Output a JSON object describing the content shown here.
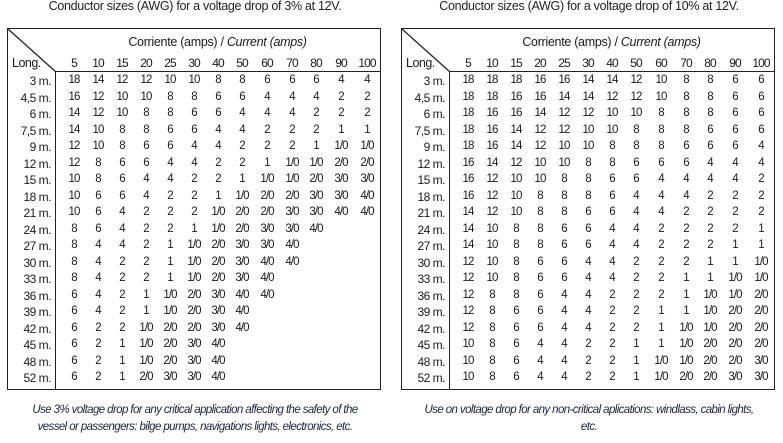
{
  "tables": [
    {
      "title": "Conductor sizes (AWG) for a voltage drop of 3% at 12V.",
      "header_es": "Corriente (amps) /",
      "header_en": "Current (amps)",
      "row_header": "Long.",
      "columns": [
        "5",
        "10",
        "15",
        "20",
        "25",
        "30",
        "40",
        "50",
        "60",
        "70",
        "80",
        "90",
        "100"
      ],
      "rows": [
        {
          "length": "3 m.",
          "values": [
            "18",
            "14",
            "12",
            "12",
            "10",
            "10",
            "8",
            "8",
            "6",
            "6",
            "6",
            "4",
            "4"
          ]
        },
        {
          "length": "4,5 m.",
          "values": [
            "16",
            "12",
            "10",
            "10",
            "8",
            "8",
            "6",
            "6",
            "4",
            "4",
            "4",
            "2",
            "2"
          ]
        },
        {
          "length": "6 m.",
          "values": [
            "14",
            "12",
            "10",
            "8",
            "8",
            "6",
            "6",
            "4",
            "4",
            "4",
            "2",
            "2",
            "2"
          ]
        },
        {
          "length": "7,5 m.",
          "values": [
            "14",
            "10",
            "8",
            "8",
            "6",
            "6",
            "4",
            "4",
            "2",
            "2",
            "2",
            "1",
            "1"
          ]
        },
        {
          "length": "9 m.",
          "values": [
            "12",
            "10",
            "8",
            "6",
            "6",
            "4",
            "4",
            "2",
            "2",
            "2",
            "1",
            "1/0",
            "1/0"
          ]
        },
        {
          "length": "12 m.",
          "values": [
            "12",
            "8",
            "6",
            "6",
            "4",
            "4",
            "2",
            "2",
            "1",
            "1/0",
            "1/0",
            "2/0",
            "2/0"
          ]
        },
        {
          "length": "15 m.",
          "values": [
            "10",
            "8",
            "6",
            "4",
            "4",
            "2",
            "2",
            "1",
            "1/0",
            "1/0",
            "2/0",
            "3/0",
            "3/0"
          ]
        },
        {
          "length": "18 m.",
          "values": [
            "10",
            "6",
            "6",
            "4",
            "2",
            "2",
            "1",
            "1/0",
            "2/0",
            "2/0",
            "3/0",
            "3/0",
            "4/0"
          ]
        },
        {
          "length": "21 m.",
          "values": [
            "10",
            "6",
            "4",
            "2",
            "2",
            "2",
            "1/0",
            "2/0",
            "2/0",
            "3/0",
            "3/0",
            "4/0",
            "4/0"
          ]
        },
        {
          "length": "24 m.",
          "values": [
            "8",
            "6",
            "4",
            "2",
            "2",
            "1",
            "1/0",
            "2/0",
            "3/0",
            "3/0",
            "4/0"
          ]
        },
        {
          "length": "27 m.",
          "values": [
            "8",
            "4",
            "4",
            "2",
            "1",
            "1/0",
            "2/0",
            "3/0",
            "3/0",
            "4/0"
          ]
        },
        {
          "length": "30 m.",
          "values": [
            "8",
            "4",
            "2",
            "2",
            "1",
            "1/0",
            "2/0",
            "3/0",
            "4/0",
            "4/0"
          ]
        },
        {
          "length": "33 m.",
          "values": [
            "8",
            "4",
            "2",
            "2",
            "1",
            "1/0",
            "2/0",
            "3/0",
            "4/0"
          ]
        },
        {
          "length": "36 m.",
          "values": [
            "6",
            "4",
            "2",
            "1",
            "1/0",
            "2/0",
            "3/0",
            "4/0",
            "4/0"
          ]
        },
        {
          "length": "39 m.",
          "values": [
            "6",
            "4",
            "2",
            "1",
            "1/0",
            "2/0",
            "3/0",
            "4/0"
          ]
        },
        {
          "length": "42 m.",
          "values": [
            "6",
            "2",
            "2",
            "1/0",
            "2/0",
            "2/0",
            "3/0",
            "4/0"
          ]
        },
        {
          "length": "45 m.",
          "values": [
            "6",
            "2",
            "1",
            "1/0",
            "2/0",
            "3/0",
            "4/0"
          ]
        },
        {
          "length": "48 m.",
          "values": [
            "6",
            "2",
            "1",
            "1/0",
            "2/0",
            "3/0",
            "4/0"
          ]
        },
        {
          "length": "52 m.",
          "values": [
            "6",
            "2",
            "1",
            "2/0",
            "3/0",
            "3/0",
            "4/0"
          ]
        }
      ],
      "note_line1": "Use 3% voltage drop for any critical application affecting the safety of the",
      "note_line2": "vessel or passengers: bilge pumps, navigations lights, electronics, etc."
    },
    {
      "title": "Conductor sizes (AWG) for a voltage drop of 10% at 12V.",
      "header_es": "Corriente (amps) /",
      "header_en": "Current (amps)",
      "row_header": "Long.",
      "columns": [
        "5",
        "10",
        "15",
        "20",
        "25",
        "30",
        "40",
        "50",
        "60",
        "70",
        "80",
        "90",
        "100"
      ],
      "rows": [
        {
          "length": "3 m.",
          "values": [
            "18",
            "18",
            "18",
            "16",
            "16",
            "14",
            "14",
            "12",
            "10",
            "8",
            "8",
            "6",
            "6"
          ]
        },
        {
          "length": "4,5 m.",
          "values": [
            "18",
            "18",
            "16",
            "16",
            "14",
            "14",
            "12",
            "12",
            "10",
            "8",
            "8",
            "6",
            "6"
          ]
        },
        {
          "length": "6 m.",
          "values": [
            "18",
            "16",
            "16",
            "14",
            "12",
            "12",
            "10",
            "10",
            "8",
            "8",
            "8",
            "6",
            "6"
          ]
        },
        {
          "length": "7,5 m.",
          "values": [
            "18",
            "16",
            "14",
            "12",
            "12",
            "10",
            "10",
            "8",
            "8",
            "8",
            "6",
            "6",
            "6"
          ]
        },
        {
          "length": "9 m.",
          "values": [
            "18",
            "16",
            "14",
            "12",
            "10",
            "10",
            "8",
            "8",
            "8",
            "6",
            "6",
            "6",
            "4"
          ]
        },
        {
          "length": "12 m.",
          "values": [
            "16",
            "14",
            "12",
            "10",
            "10",
            "8",
            "8",
            "6",
            "6",
            "6",
            "4",
            "4",
            "4"
          ]
        },
        {
          "length": "15 m.",
          "values": [
            "16",
            "12",
            "10",
            "10",
            "8",
            "8",
            "6",
            "6",
            "4",
            "4",
            "4",
            "4",
            "2"
          ]
        },
        {
          "length": "18 m.",
          "values": [
            "16",
            "12",
            "10",
            "8",
            "8",
            "8",
            "6",
            "4",
            "4",
            "4",
            "2",
            "2",
            "2"
          ]
        },
        {
          "length": "21 m.",
          "values": [
            "14",
            "12",
            "10",
            "8",
            "8",
            "6",
            "6",
            "4",
            "4",
            "2",
            "2",
            "2",
            "2"
          ]
        },
        {
          "length": "24 m.",
          "values": [
            "14",
            "10",
            "8",
            "8",
            "6",
            "6",
            "4",
            "4",
            "2",
            "2",
            "2",
            "2",
            "1"
          ]
        },
        {
          "length": "27 m.",
          "values": [
            "14",
            "10",
            "8",
            "8",
            "6",
            "6",
            "4",
            "4",
            "2",
            "2",
            "2",
            "1",
            "1"
          ]
        },
        {
          "length": "30 m.",
          "values": [
            "12",
            "10",
            "8",
            "6",
            "6",
            "4",
            "4",
            "2",
            "2",
            "2",
            "1",
            "1",
            "1/0"
          ]
        },
        {
          "length": "33 m.",
          "values": [
            "12",
            "10",
            "8",
            "6",
            "6",
            "4",
            "4",
            "2",
            "2",
            "1",
            "1",
            "1/0",
            "1/0"
          ]
        },
        {
          "length": "36 m.",
          "values": [
            "12",
            "8",
            "8",
            "6",
            "4",
            "4",
            "2",
            "2",
            "2",
            "1",
            "1/0",
            "1/0",
            "2/0"
          ]
        },
        {
          "length": "39 m.",
          "values": [
            "12",
            "8",
            "6",
            "6",
            "4",
            "4",
            "2",
            "2",
            "1",
            "1",
            "1/0",
            "2/0",
            "2/0"
          ]
        },
        {
          "length": "42 m.",
          "values": [
            "12",
            "8",
            "6",
            "6",
            "4",
            "4",
            "2",
            "2",
            "1",
            "1/0",
            "1/0",
            "2/0",
            "2/0"
          ]
        },
        {
          "length": "45 m.",
          "values": [
            "10",
            "8",
            "6",
            "4",
            "4",
            "2",
            "2",
            "1",
            "1",
            "1/0",
            "2/0",
            "2/0",
            "2/0"
          ]
        },
        {
          "length": "48 m.",
          "values": [
            "10",
            "8",
            "6",
            "4",
            "4",
            "2",
            "2",
            "1",
            "1/0",
            "1/0",
            "2/0",
            "2/0",
            "3/0"
          ]
        },
        {
          "length": "52 m.",
          "values": [
            "10",
            "8",
            "6",
            "4",
            "4",
            "2",
            "2",
            "1",
            "1/0",
            "2/0",
            "2/0",
            "3/0",
            "3/0"
          ]
        }
      ],
      "note_line1": "Use on voltage drop for any non-critical aplications: windlass, cabin lights,",
      "note_line2": "etc."
    }
  ]
}
